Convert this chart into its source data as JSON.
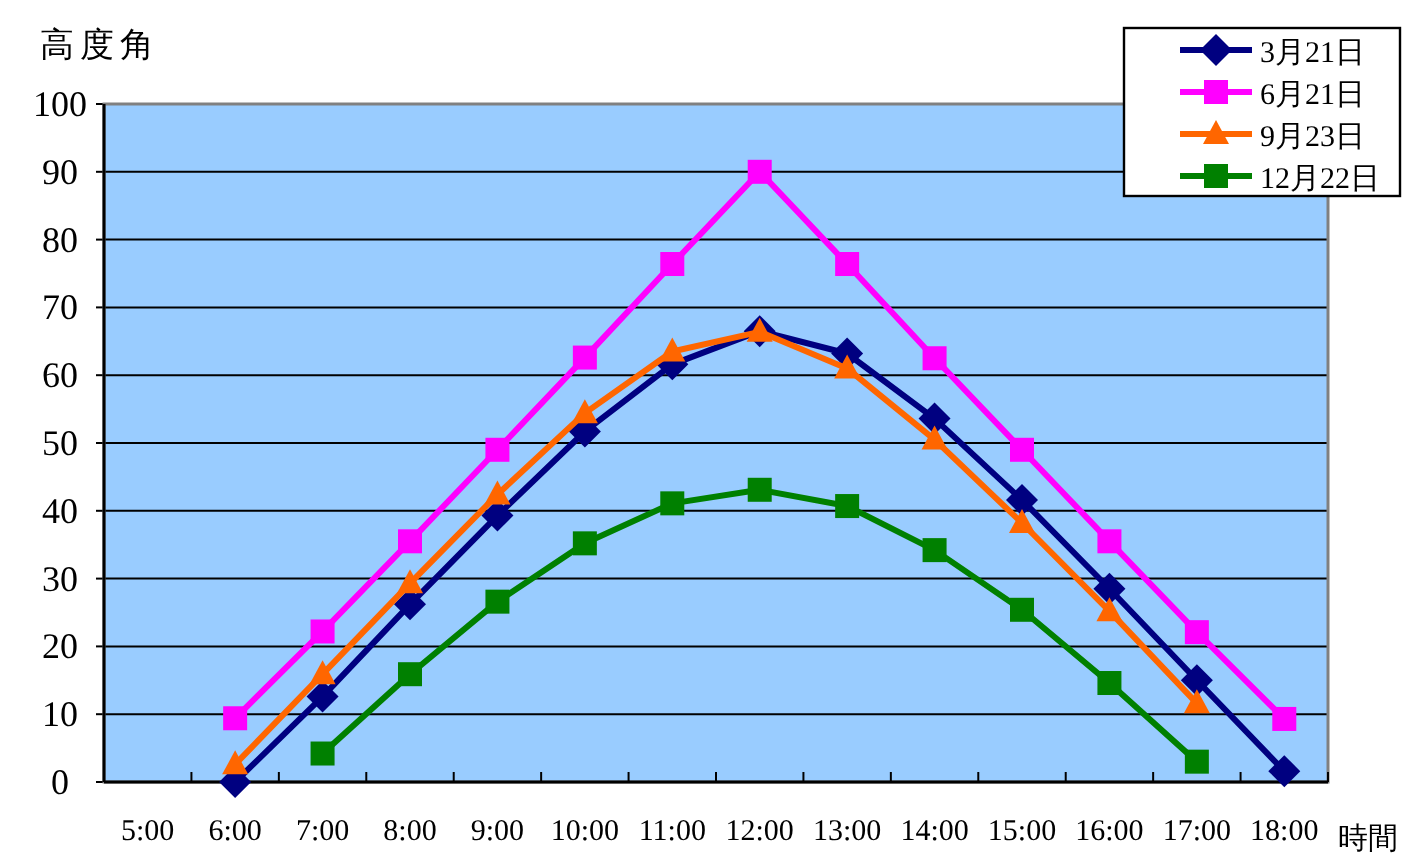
{
  "chart_data": {
    "type": "line",
    "ylabel": "高度角",
    "xlabel": "時間",
    "categories": [
      "5:00",
      "6:00",
      "7:00",
      "8:00",
      "9:00",
      "10:00",
      "11:00",
      "12:00",
      "13:00",
      "14:00",
      "15:00",
      "16:00",
      "17:00",
      "18:00"
    ],
    "ylim": [
      0,
      100
    ],
    "yticks": [
      0,
      10,
      20,
      30,
      40,
      50,
      60,
      70,
      80,
      90,
      100
    ],
    "grid": "y",
    "legend": "top right",
    "series": [
      {
        "name": "3月21日",
        "color": "#000080",
        "marker": "diamond",
        "values": [
          null,
          0,
          12.6,
          26.2,
          39.3,
          51.7,
          61.6,
          66.5,
          63.2,
          53.6,
          41.6,
          28.5,
          15.0,
          1.6
        ]
      },
      {
        "name": "6月21日",
        "color": "#ff00ff",
        "marker": "square",
        "values": [
          null,
          9.4,
          22.2,
          35.5,
          49.0,
          62.6,
          76.4,
          90.0,
          76.4,
          62.5,
          49.0,
          35.5,
          22.1,
          9.3
        ]
      },
      {
        "name": "9月23日",
        "color": "#ff6600",
        "marker": "triangle",
        "values": [
          null,
          2.6,
          15.9,
          29.3,
          42.4,
          54.4,
          63.5,
          66.4,
          61.0,
          50.5,
          38.2,
          25.2,
          11.6,
          null
        ]
      },
      {
        "name": "12月22日",
        "color": "#008000",
        "marker": "square",
        "values": [
          null,
          null,
          4.2,
          15.9,
          26.6,
          35.2,
          41.1,
          43.1,
          40.7,
          34.2,
          25.4,
          14.6,
          3.0,
          null
        ]
      }
    ]
  }
}
